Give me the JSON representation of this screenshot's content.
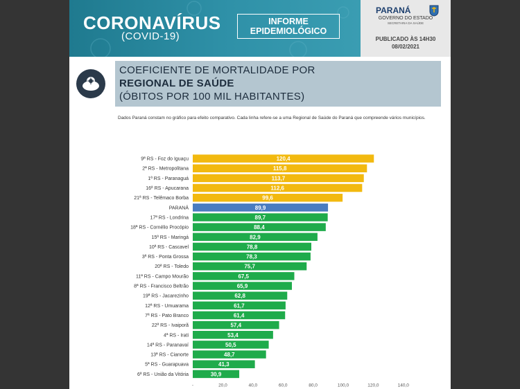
{
  "header": {
    "title": "CORONAVÍRUS",
    "subtitle": "(COVID-19)",
    "informe_line1": "INFORME",
    "informe_line2": "EPIDEMIOLÓGICO"
  },
  "gov": {
    "name": "PARANÁ",
    "state": "GOVERNO DO ESTADO",
    "secretaria": "SECRETARIA DA SAÚDE",
    "published_line1": "PUBLICADO ÀS 14H30",
    "published_line2": "08/02/2021"
  },
  "topic": {
    "line1": "COEFICIENTE DE MORTALIDADE POR",
    "line2": "REGIONAL DE SAÚDE",
    "line3": "(ÓBITOS POR 100 MIL HABITANTES)"
  },
  "note": "Dados Paraná constam no gráfico para efeito comparativo. Cada linha refere-se a uma Regional de Saúde do Paraná que compreende vários municípios.",
  "colors": {
    "header": "#2f8fa6",
    "above_state": "#f2b90f",
    "state": "#4a7cc0",
    "below_state": "#1fab4b"
  },
  "chart_data": {
    "type": "bar",
    "orientation": "horizontal",
    "categories": [
      "9ª RS - Foz do Iguaçu",
      "2ª RS - Metropolitana",
      "1ª RS - Paranaguá",
      "16ª RS - Apucarana",
      "21ª RS - Telêmaco Borba",
      "PARANÁ",
      "17ª RS - Londrina",
      "18ª RS - Cornélio Procópio",
      "15ª RS - Maringá",
      "10ª RS - Cascavel",
      "3ª RS - Ponta Grossa",
      "20ª RS - Toledo",
      "11ª RS - Campo Mourão",
      "8ª RS - Francisco Beltrão",
      "19ª RS - Jacarezinho",
      "12ª RS - Umuarama",
      "7ª RS - Pato Branco",
      "22ª RS - Ivaiporã",
      "4ª RS - Irati",
      "14ª RS - Paranavaí",
      "13ª RS - Cianorte",
      "5ª RS - Guarapuava",
      "6ª RS - União da Vitória"
    ],
    "values": [
      120.4,
      115.8,
      113.7,
      112.6,
      99.6,
      89.9,
      89.7,
      88.4,
      82.9,
      78.8,
      78.3,
      75.7,
      67.5,
      65.9,
      62.8,
      61.7,
      61.4,
      57.4,
      53.4,
      50.5,
      48.7,
      41.3,
      30.9
    ],
    "value_labels": [
      "120,4",
      "115,8",
      "113,7",
      "112,6",
      "99,6",
      "89,9",
      "89,7",
      "88,4",
      "82,9",
      "78,8",
      "78,3",
      "75,7",
      "67,5",
      "65,9",
      "62,8",
      "61,7",
      "61,4",
      "57,4",
      "53,4",
      "50,5",
      "48,7",
      "41,3",
      "30,9"
    ],
    "bar_colors": [
      "#f2b90f",
      "#f2b90f",
      "#f2b90f",
      "#f2b90f",
      "#f2b90f",
      "#4a7cc0",
      "#1fab4b",
      "#1fab4b",
      "#1fab4b",
      "#1fab4b",
      "#1fab4b",
      "#1fab4b",
      "#1fab4b",
      "#1fab4b",
      "#1fab4b",
      "#1fab4b",
      "#1fab4b",
      "#1fab4b",
      "#1fab4b",
      "#1fab4b",
      "#1fab4b",
      "#1fab4b",
      "#1fab4b"
    ],
    "xlim": [
      0,
      140
    ],
    "x_ticks": [
      "-",
      "20,0",
      "40,0",
      "60,0",
      "80,0",
      "100,0",
      "120,0",
      "140,0"
    ],
    "grid": false,
    "legend": "none"
  }
}
